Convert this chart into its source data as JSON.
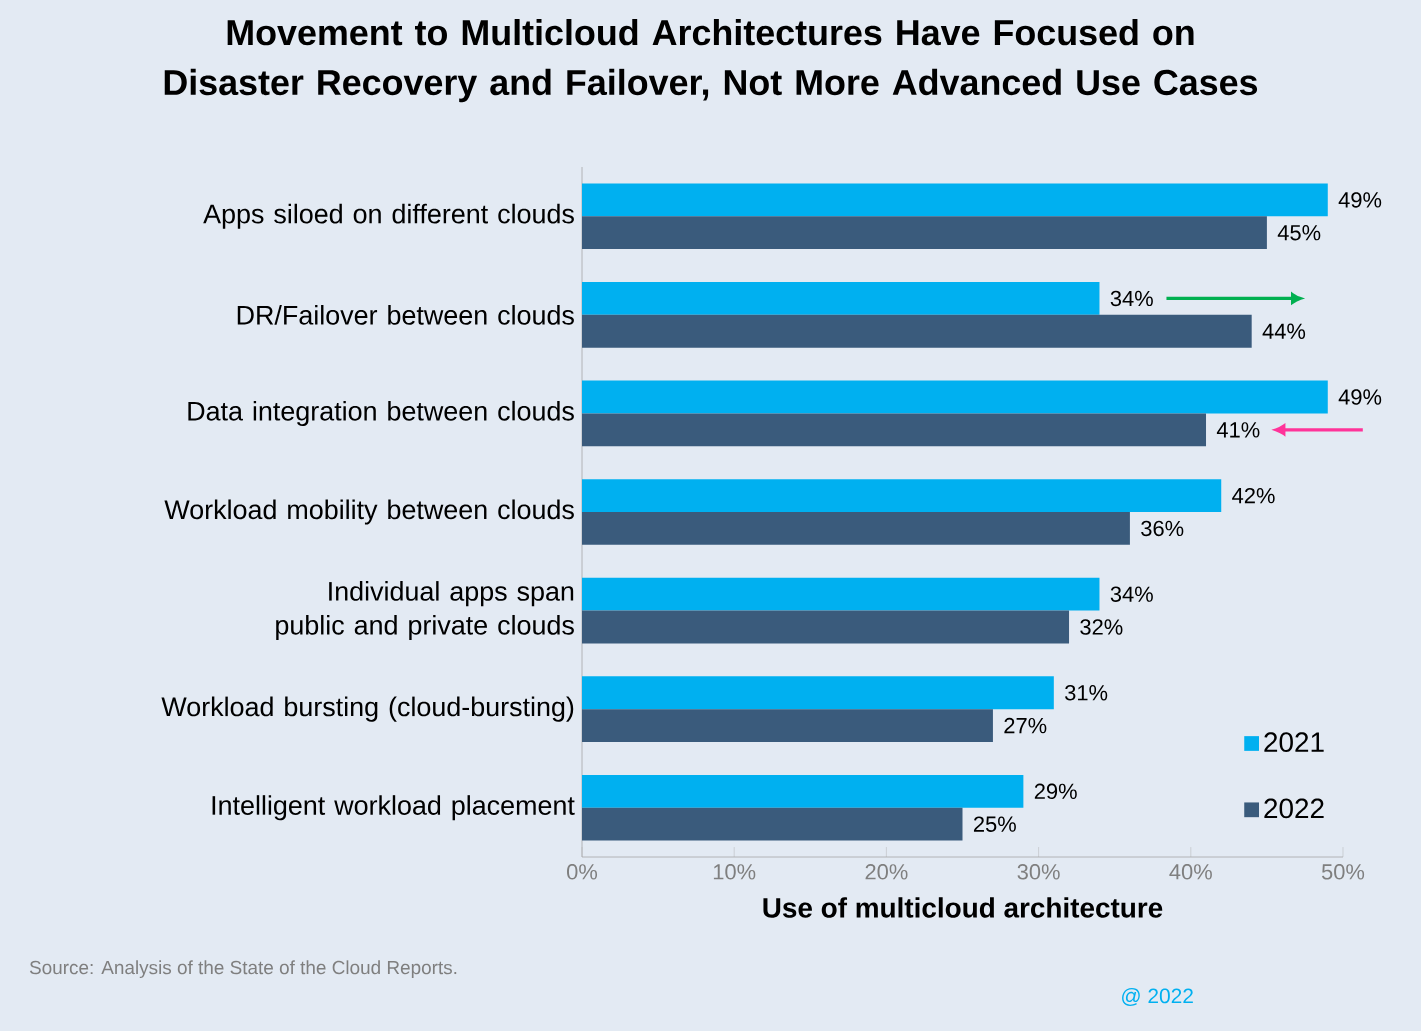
{
  "chart_data": {
    "type": "bar",
    "orientation": "horizontal",
    "title": "Movement to Multicloud Architectures Have Focused on Disaster Recovery and Failover, Not More Advanced Use Cases",
    "xlabel": "Use of multicloud architecture",
    "categories": [
      "Apps siloed on different clouds",
      "DR/Failover between clouds",
      "Data integration between clouds",
      "Workload mobility between clouds",
      "Individual apps span public and private clouds",
      "Workload bursting (cloud-bursting)",
      "Intelligent workload placement"
    ],
    "series": [
      {
        "name": "2021",
        "color": "#00b0f0",
        "values": [
          49,
          34,
          49,
          42,
          34,
          31,
          29
        ],
        "value_labels": [
          "49%",
          "34%",
          "49%",
          "42%",
          "34%",
          "31%",
          "29%"
        ]
      },
      {
        "name": "2022",
        "color": "#3a5b7c",
        "values": [
          45,
          44,
          41,
          36,
          32,
          27,
          25
        ],
        "value_labels": [
          "45%",
          "44%",
          "41%",
          "36%",
          "32%",
          "27%",
          "25%"
        ]
      }
    ],
    "xlim": [
      0,
      50
    ],
    "xticks": [
      {
        "value": 0,
        "label": "0%"
      },
      {
        "value": 10,
        "label": "10%"
      },
      {
        "value": 20,
        "label": "20%"
      },
      {
        "value": 30,
        "label": "30%"
      },
      {
        "value": 40,
        "label": "40%"
      },
      {
        "value": 50,
        "label": "50%"
      }
    ],
    "legend": "bottom right",
    "grid": false,
    "annotations": [
      "Source: Analysis of the State of the Cloud Reports.",
      "@ 2022"
    ]
  }
}
